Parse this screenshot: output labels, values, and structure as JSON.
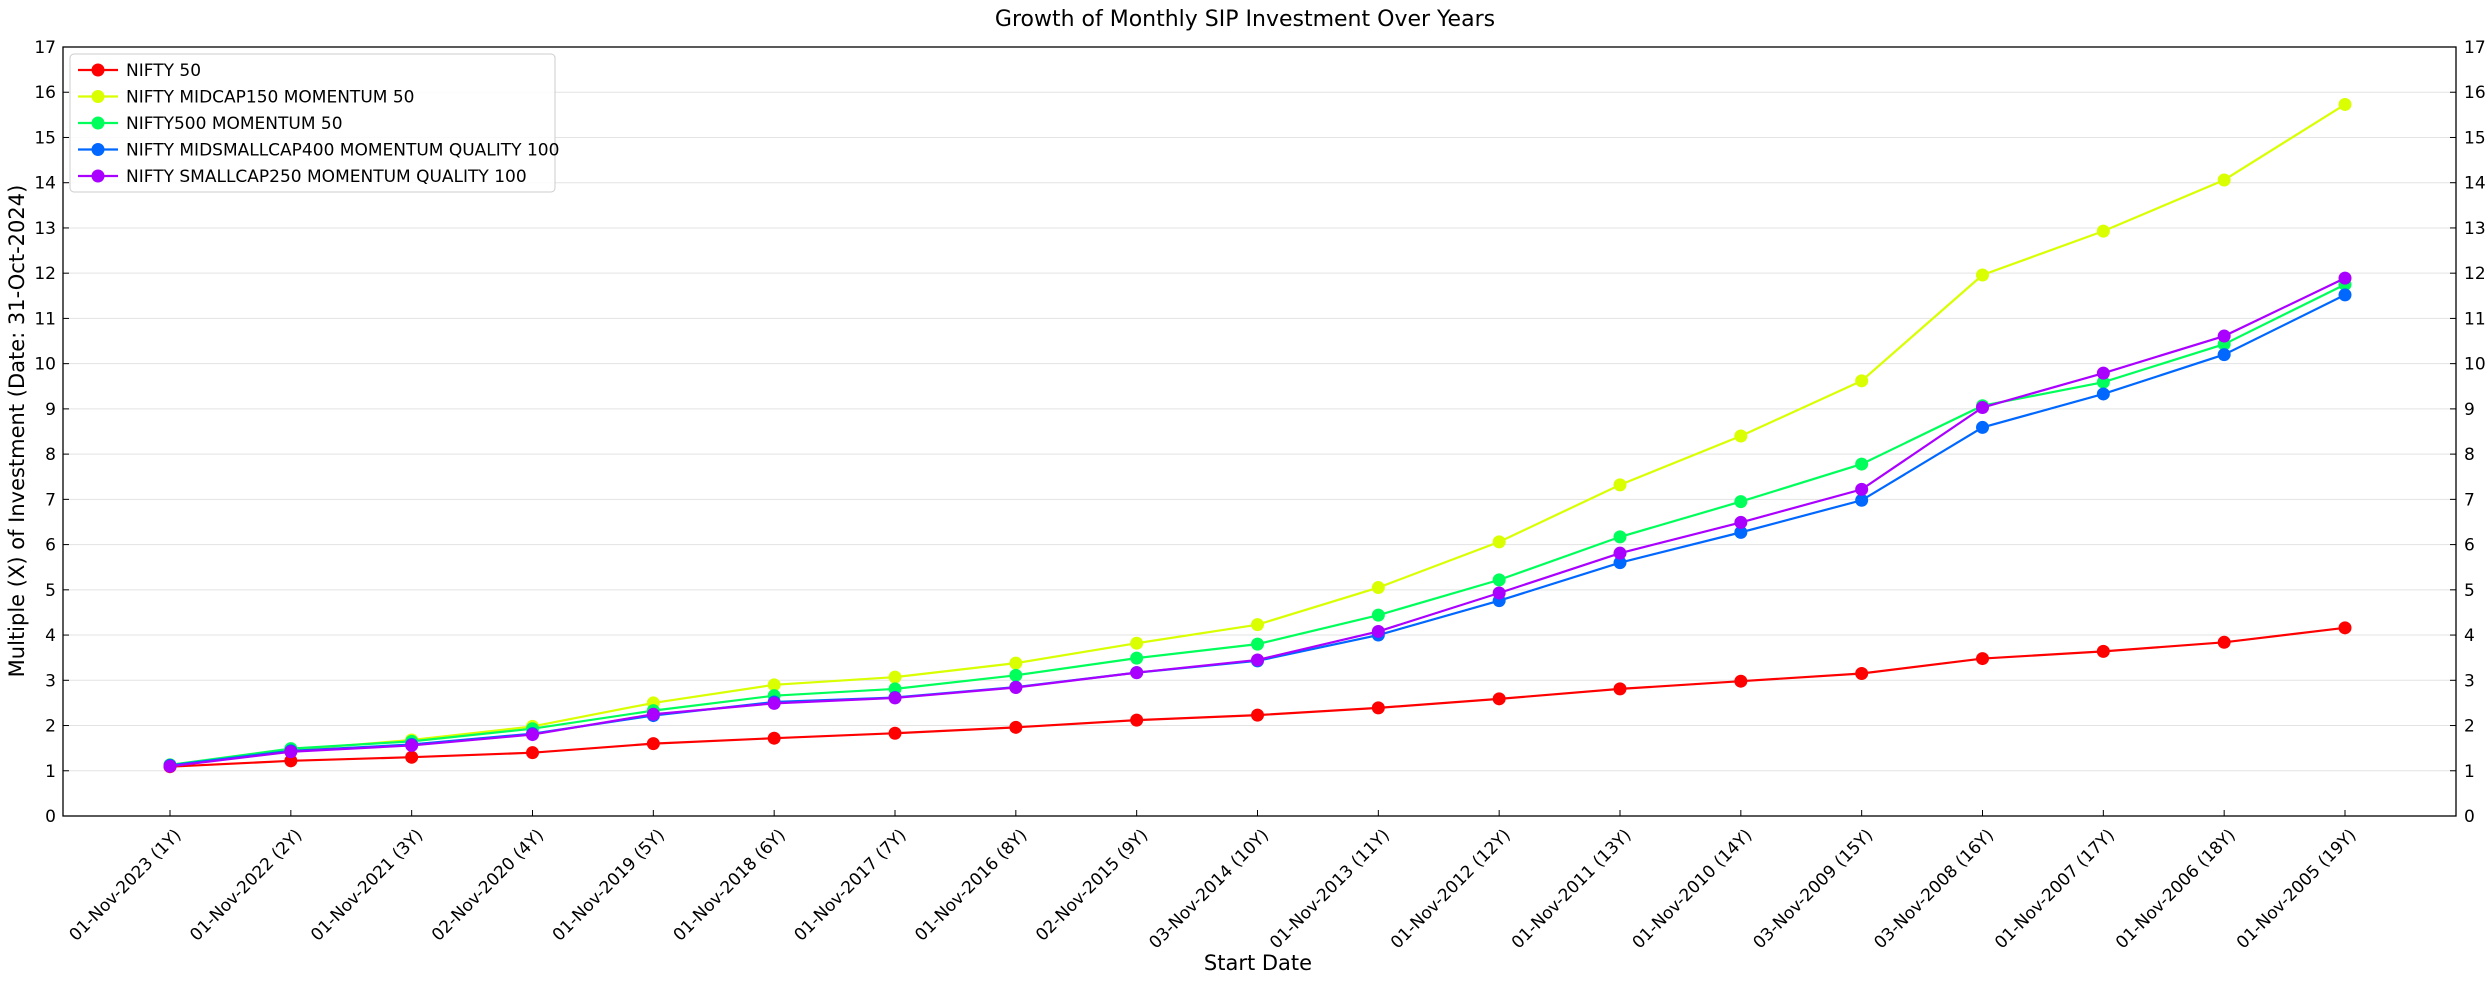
{
  "chart_data": {
    "type": "line",
    "title": "Growth of Monthly SIP Investment Over Years",
    "xlabel": "Start Date",
    "ylabel": "Multiple (X) of Investment (Date: 31-Oct-2024)",
    "ylim": [
      0,
      17
    ],
    "yticks": [
      0,
      1,
      2,
      3,
      4,
      5,
      6,
      7,
      8,
      9,
      10,
      11,
      12,
      13,
      14,
      15,
      16,
      17
    ],
    "grid": "horizontal",
    "legend_position": "top-left",
    "categories": [
      "01-Nov-2023 (1Y)",
      "01-Nov-2022 (2Y)",
      "01-Nov-2021 (3Y)",
      "02-Nov-2020 (4Y)",
      "01-Nov-2019 (5Y)",
      "01-Nov-2018 (6Y)",
      "01-Nov-2017 (7Y)",
      "01-Nov-2016 (8Y)",
      "02-Nov-2015 (9Y)",
      "03-Nov-2014 (10Y)",
      "01-Nov-2013 (11Y)",
      "01-Nov-2012 (12Y)",
      "01-Nov-2011 (13Y)",
      "01-Nov-2010 (14Y)",
      "03-Nov-2009 (15Y)",
      "03-Nov-2008 (16Y)",
      "01-Nov-2007 (17Y)",
      "01-Nov-2006 (18Y)",
      "01-Nov-2005 (19Y)"
    ],
    "series": [
      {
        "name": "NIFTY 50",
        "color": "#ff0000",
        "values": [
          1.09,
          1.22,
          1.3,
          1.4,
          1.6,
          1.72,
          1.83,
          1.96,
          2.12,
          2.23,
          2.39,
          2.59,
          2.81,
          2.98,
          3.15,
          3.48,
          3.64,
          3.84,
          4.16
        ]
      },
      {
        "name": "NIFTY MIDCAP150 MOMENTUM 50",
        "color": "#d9ff00",
        "values": [
          1.13,
          1.46,
          1.68,
          1.98,
          2.5,
          2.9,
          3.07,
          3.38,
          3.82,
          4.23,
          5.05,
          6.06,
          7.32,
          8.4,
          9.62,
          11.96,
          12.93,
          14.06,
          15.73
        ]
      },
      {
        "name": "NIFTY500 MOMENTUM 50",
        "color": "#00ff5a",
        "values": [
          1.13,
          1.49,
          1.65,
          1.93,
          2.33,
          2.66,
          2.81,
          3.11,
          3.49,
          3.8,
          4.44,
          5.22,
          6.17,
          6.95,
          7.78,
          9.07,
          9.59,
          10.43,
          11.75
        ]
      },
      {
        "name": "NIFTY MIDSMALLCAP400 MOMENTUM QUALITY 100",
        "color": "#0068ff",
        "values": [
          1.12,
          1.44,
          1.58,
          1.82,
          2.22,
          2.52,
          2.62,
          2.85,
          3.17,
          3.43,
          4.0,
          4.76,
          5.6,
          6.27,
          6.98,
          8.59,
          9.33,
          10.2,
          11.52
        ]
      },
      {
        "name": "NIFTY SMALLCAP250 MOMENTUM QUALITY 100",
        "color": "#aa00ff",
        "values": [
          1.1,
          1.42,
          1.56,
          1.8,
          2.25,
          2.49,
          2.61,
          2.84,
          3.17,
          3.45,
          4.08,
          4.93,
          5.81,
          6.49,
          7.22,
          9.03,
          9.79,
          10.61,
          11.89
        ]
      }
    ]
  }
}
